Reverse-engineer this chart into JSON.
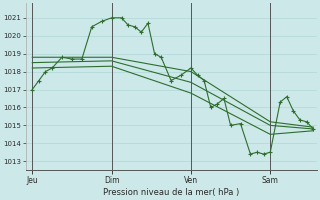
{
  "background_color": "#cce8e8",
  "grid_color": "#b0d8d8",
  "line_color": "#2d6e2d",
  "ylabel": "Pression niveau de la mer( hPa )",
  "ylim": [
    1012.5,
    1021.8
  ],
  "yticks": [
    1013,
    1014,
    1015,
    1016,
    1017,
    1018,
    1019,
    1020,
    1021
  ],
  "day_labels": [
    "Jeu",
    "Dim",
    "Ven",
    "Sam"
  ],
  "day_positions": [
    0,
    48,
    96,
    144
  ],
  "xlim": [
    -4,
    172
  ],
  "line1_x": [
    0,
    4,
    8,
    12,
    18,
    24,
    30,
    36,
    42,
    48,
    54,
    58,
    62,
    66,
    70,
    74,
    78,
    84,
    90,
    96,
    100,
    104,
    108,
    112,
    116,
    120,
    126,
    132,
    136,
    140,
    144,
    150,
    154,
    158,
    162,
    166,
    170
  ],
  "line1_y": [
    1017.0,
    1017.5,
    1018.0,
    1018.2,
    1018.8,
    1018.7,
    1018.7,
    1020.5,
    1020.8,
    1021.0,
    1021.0,
    1020.6,
    1020.5,
    1020.2,
    1020.7,
    1019.0,
    1018.8,
    1017.5,
    1017.8,
    1018.2,
    1017.8,
    1017.5,
    1016.0,
    1016.2,
    1016.5,
    1015.0,
    1015.1,
    1013.4,
    1013.5,
    1013.4,
    1013.5,
    1016.3,
    1016.6,
    1015.8,
    1015.3,
    1015.2,
    1014.8
  ],
  "line2_x": [
    0,
    48,
    96,
    144,
    170
  ],
  "line2_y": [
    1018.8,
    1018.8,
    1018.0,
    1015.2,
    1014.9
  ],
  "line3_x": [
    0,
    48,
    96,
    144,
    170
  ],
  "line3_y": [
    1018.5,
    1018.6,
    1017.4,
    1015.0,
    1014.8
  ],
  "line4_x": [
    0,
    48,
    96,
    144,
    170
  ],
  "line4_y": [
    1018.2,
    1018.3,
    1016.8,
    1014.5,
    1014.7
  ]
}
